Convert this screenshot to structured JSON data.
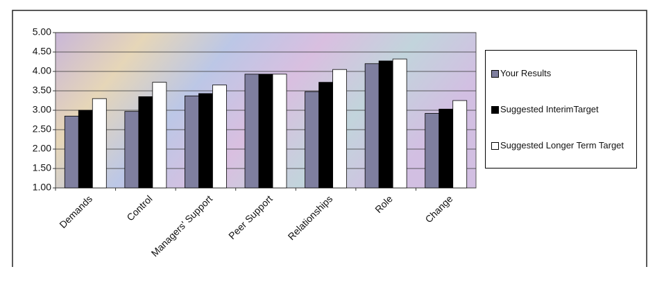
{
  "chart_data": {
    "type": "bar",
    "categories": [
      "Demands",
      "Control",
      "Managers' Support",
      "Peer Support",
      "Relationships",
      "Role",
      "Change"
    ],
    "series": [
      {
        "name": "Your Results",
        "color": "#7f7f9f",
        "values": [
          2.85,
          2.97,
          3.37,
          3.93,
          3.48,
          4.2,
          2.92
        ]
      },
      {
        "name": "Suggested InterimTarget",
        "color": "#000000",
        "values": [
          3.0,
          3.35,
          3.43,
          3.93,
          3.72,
          4.27,
          3.03
        ]
      },
      {
        "name": "Suggested Longer Term Target",
        "color": "#ffffff",
        "values": [
          3.3,
          3.72,
          3.65,
          3.93,
          4.05,
          4.32,
          3.25
        ]
      }
    ],
    "ylim": [
      1,
      5
    ],
    "yticks": [
      {
        "value": 1,
        "label": "1.00"
      },
      {
        "value": 1.5,
        "label": "1.50"
      },
      {
        "value": 2,
        "label": "2.00"
      },
      {
        "value": 2.5,
        "label": "2.50"
      },
      {
        "value": 3,
        "label": "3.00"
      },
      {
        "value": 3.5,
        "label": "3.50"
      },
      {
        "value": 4,
        "label": "4.00"
      },
      {
        "value": 4.5,
        "label": "4.50"
      },
      {
        "value": 5,
        "label": "5.00"
      }
    ],
    "grid": true
  }
}
